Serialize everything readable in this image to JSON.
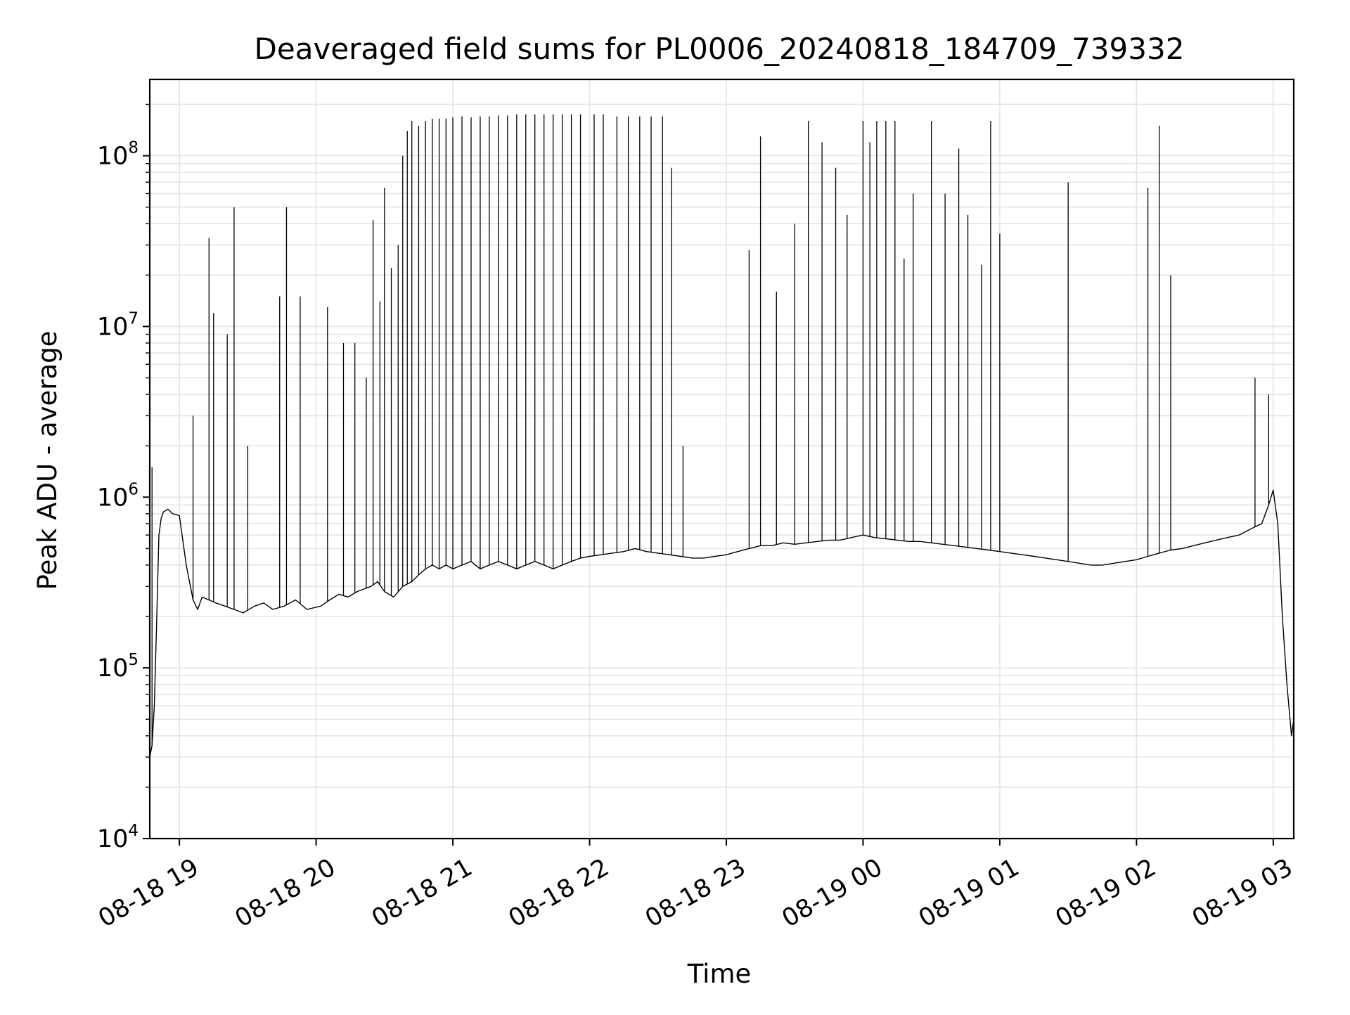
{
  "chart_data": {
    "type": "line",
    "title": "Deaveraged field sums for PL0006_20240818_184709_739332",
    "xlabel": "Time",
    "ylabel": "Peak ADU - average",
    "y_scale": "log",
    "ylim": [
      10000,
      280000000
    ],
    "xlim": [
      "2024-08-18 18:47",
      "2024-08-19 03:09"
    ],
    "grid": true,
    "line_color": "#000000",
    "grid_color": "#e5e5e5",
    "x_ticks": [
      {
        "value": "2024-08-18 19:00",
        "label": "08-18 19"
      },
      {
        "value": "2024-08-18 20:00",
        "label": "08-18 20"
      },
      {
        "value": "2024-08-18 21:00",
        "label": "08-18 21"
      },
      {
        "value": "2024-08-18 22:00",
        "label": "08-18 22"
      },
      {
        "value": "2024-08-18 23:00",
        "label": "08-18 23"
      },
      {
        "value": "2024-08-19 00:00",
        "label": "08-19 00"
      },
      {
        "value": "2024-08-19 01:00",
        "label": "08-19 01"
      },
      {
        "value": "2024-08-19 02:00",
        "label": "08-19 02"
      },
      {
        "value": "2024-08-19 03:00",
        "label": "08-19 03"
      }
    ],
    "y_ticks": [
      {
        "value": 10000,
        "base": "10",
        "exp": "4"
      },
      {
        "value": 100000,
        "base": "10",
        "exp": "5"
      },
      {
        "value": 1000000,
        "base": "10",
        "exp": "6"
      },
      {
        "value": 10000000,
        "base": "10",
        "exp": "7"
      },
      {
        "value": 100000000,
        "base": "10",
        "exp": "8"
      }
    ],
    "series": [
      {
        "x": [
          "2024-08-18 18:47",
          "2024-08-18 18:48",
          "2024-08-18 18:49",
          "2024-08-18 18:50",
          "2024-08-18 18:51",
          "2024-08-18 18:52",
          "2024-08-18 18:53",
          "2024-08-18 18:55",
          "2024-08-18 18:57",
          "2024-08-18 19:00",
          "2024-08-18 19:03",
          "2024-08-18 19:06",
          "2024-08-18 19:08",
          "2024-08-18 19:10",
          "2024-08-18 19:13",
          "2024-08-18 19:16",
          "2024-08-18 19:20",
          "2024-08-18 19:24",
          "2024-08-18 19:28",
          "2024-08-18 19:33",
          "2024-08-18 19:37",
          "2024-08-18 19:41",
          "2024-08-18 19:46",
          "2024-08-18 19:51",
          "2024-08-18 19:56",
          "2024-08-18 20:02",
          "2024-08-18 20:06",
          "2024-08-18 20:10",
          "2024-08-18 20:14",
          "2024-08-18 20:18",
          "2024-08-18 20:24",
          "2024-08-18 20:27",
          "2024-08-18 20:30",
          "2024-08-18 20:34",
          "2024-08-18 20:38",
          "2024-08-18 20:42",
          "2024-08-18 20:45",
          "2024-08-18 20:48",
          "2024-08-18 20:51",
          "2024-08-18 20:54",
          "2024-08-18 20:57",
          "2024-08-18 21:00",
          "2024-08-18 21:04",
          "2024-08-18 21:08",
          "2024-08-18 21:12",
          "2024-08-18 21:16",
          "2024-08-18 21:20",
          "2024-08-18 21:24",
          "2024-08-18 21:28",
          "2024-08-18 21:32",
          "2024-08-18 21:36",
          "2024-08-18 21:40",
          "2024-08-18 21:44",
          "2024-08-18 21:48",
          "2024-08-18 21:52",
          "2024-08-18 21:56",
          "2024-08-18 22:00",
          "2024-08-18 22:05",
          "2024-08-18 22:10",
          "2024-08-18 22:15",
          "2024-08-18 22:20",
          "2024-08-18 22:25",
          "2024-08-18 22:30",
          "2024-08-18 22:35",
          "2024-08-18 22:40",
          "2024-08-18 22:45",
          "2024-08-18 22:50",
          "2024-08-18 22:55",
          "2024-08-18 23:00",
          "2024-08-18 23:05",
          "2024-08-18 23:10",
          "2024-08-18 23:15",
          "2024-08-18 23:20",
          "2024-08-18 23:25",
          "2024-08-18 23:30",
          "2024-08-18 23:35",
          "2024-08-18 23:40",
          "2024-08-18 23:45",
          "2024-08-18 23:50",
          "2024-08-18 23:55",
          "2024-08-19 00:00",
          "2024-08-19 00:05",
          "2024-08-19 00:10",
          "2024-08-19 00:15",
          "2024-08-19 00:20",
          "2024-08-19 00:25",
          "2024-08-19 00:30",
          "2024-08-19 00:35",
          "2024-08-19 00:40",
          "2024-08-19 00:45",
          "2024-08-19 00:50",
          "2024-08-19 00:55",
          "2024-08-19 01:00",
          "2024-08-19 01:05",
          "2024-08-19 01:10",
          "2024-08-19 01:15",
          "2024-08-19 01:20",
          "2024-08-19 01:25",
          "2024-08-19 01:30",
          "2024-08-19 01:35",
          "2024-08-19 01:40",
          "2024-08-19 01:45",
          "2024-08-19 01:50",
          "2024-08-19 01:55",
          "2024-08-19 02:00",
          "2024-08-19 02:05",
          "2024-08-19 02:10",
          "2024-08-19 02:15",
          "2024-08-19 02:20",
          "2024-08-19 02:25",
          "2024-08-19 02:30",
          "2024-08-19 02:35",
          "2024-08-19 02:40",
          "2024-08-19 02:45",
          "2024-08-19 02:50",
          "2024-08-19 02:55",
          "2024-08-19 02:58",
          "2024-08-19 03:00",
          "2024-08-19 03:02",
          "2024-08-19 03:04",
          "2024-08-19 03:06",
          "2024-08-19 03:08",
          "2024-08-19 03:09"
        ],
        "y": [
          30000,
          35000,
          60000,
          180000,
          600000,
          750000,
          820000,
          850000,
          800000,
          780000,
          400000,
          250000,
          220000,
          260000,
          250000,
          240000,
          230000,
          220000,
          210000,
          230000,
          240000,
          220000,
          230000,
          250000,
          220000,
          230000,
          250000,
          270000,
          260000,
          280000,
          300000,
          320000,
          280000,
          260000,
          300000,
          320000,
          350000,
          380000,
          400000,
          380000,
          400000,
          380000,
          400000,
          420000,
          380000,
          400000,
          420000,
          400000,
          380000,
          400000,
          420000,
          400000,
          380000,
          400000,
          420000,
          440000,
          450000,
          460000,
          470000,
          480000,
          500000,
          480000,
          470000,
          460000,
          450000,
          440000,
          440000,
          450000,
          460000,
          480000,
          500000,
          520000,
          520000,
          540000,
          530000,
          540000,
          550000,
          560000,
          560000,
          580000,
          600000,
          580000,
          570000,
          560000,
          550000,
          550000,
          540000,
          530000,
          520000,
          510000,
          500000,
          490000,
          480000,
          470000,
          460000,
          450000,
          440000,
          430000,
          420000,
          410000,
          400000,
          400000,
          410000,
          420000,
          430000,
          450000,
          470000,
          490000,
          500000,
          520000,
          540000,
          560000,
          580000,
          600000,
          650000,
          700000,
          900000,
          1100000,
          700000,
          200000,
          80000,
          40000,
          50000
        ]
      }
    ],
    "spikes": [
      {
        "x": "2024-08-18 18:48",
        "peak": 1500000
      },
      {
        "x": "2024-08-18 19:06",
        "peak": 3000000
      },
      {
        "x": "2024-08-18 19:13",
        "peak": 33000000
      },
      {
        "x": "2024-08-18 19:15",
        "peak": 12000000
      },
      {
        "x": "2024-08-18 19:21",
        "peak": 9000000
      },
      {
        "x": "2024-08-18 19:24",
        "peak": 50000000
      },
      {
        "x": "2024-08-18 19:30",
        "peak": 2000000
      },
      {
        "x": "2024-08-18 19:44",
        "peak": 15000000
      },
      {
        "x": "2024-08-18 19:47",
        "peak": 50000000
      },
      {
        "x": "2024-08-18 19:53",
        "peak": 15000000
      },
      {
        "x": "2024-08-18 20:05",
        "peak": 13000000
      },
      {
        "x": "2024-08-18 20:12",
        "peak": 8000000
      },
      {
        "x": "2024-08-18 20:17",
        "peak": 8000000
      },
      {
        "x": "2024-08-18 20:22",
        "peak": 5000000
      },
      {
        "x": "2024-08-18 20:25",
        "peak": 42000000
      },
      {
        "x": "2024-08-18 20:28",
        "peak": 14000000
      },
      {
        "x": "2024-08-18 20:30",
        "peak": 65000000
      },
      {
        "x": "2024-08-18 20:33",
        "peak": 22000000
      },
      {
        "x": "2024-08-18 20:36",
        "peak": 30000000
      },
      {
        "x": "2024-08-18 20:38",
        "peak": 100000000
      },
      {
        "x": "2024-08-18 20:40",
        "peak": 140000000
      },
      {
        "x": "2024-08-18 20:42",
        "peak": 160000000
      },
      {
        "x": "2024-08-18 20:45",
        "peak": 150000000
      },
      {
        "x": "2024-08-18 20:48",
        "peak": 160000000
      },
      {
        "x": "2024-08-18 20:51",
        "peak": 165000000
      },
      {
        "x": "2024-08-18 20:54",
        "peak": 165000000
      },
      {
        "x": "2024-08-18 20:57",
        "peak": 165000000
      },
      {
        "x": "2024-08-18 21:00",
        "peak": 168000000
      },
      {
        "x": "2024-08-18 21:04",
        "peak": 170000000
      },
      {
        "x": "2024-08-18 21:08",
        "peak": 168000000
      },
      {
        "x": "2024-08-18 21:12",
        "peak": 170000000
      },
      {
        "x": "2024-08-18 21:16",
        "peak": 170000000
      },
      {
        "x": "2024-08-18 21:20",
        "peak": 172000000
      },
      {
        "x": "2024-08-18 21:24",
        "peak": 172000000
      },
      {
        "x": "2024-08-18 21:28",
        "peak": 175000000
      },
      {
        "x": "2024-08-18 21:32",
        "peak": 175000000
      },
      {
        "x": "2024-08-18 21:36",
        "peak": 175000000
      },
      {
        "x": "2024-08-18 21:40",
        "peak": 175000000
      },
      {
        "x": "2024-08-18 21:44",
        "peak": 175000000
      },
      {
        "x": "2024-08-18 21:48",
        "peak": 175000000
      },
      {
        "x": "2024-08-18 21:52",
        "peak": 175000000
      },
      {
        "x": "2024-08-18 21:56",
        "peak": 175000000
      },
      {
        "x": "2024-08-18 22:02",
        "peak": 175000000
      },
      {
        "x": "2024-08-18 22:06",
        "peak": 175000000
      },
      {
        "x": "2024-08-18 22:12",
        "peak": 170000000
      },
      {
        "x": "2024-08-18 22:17",
        "peak": 170000000
      },
      {
        "x": "2024-08-18 22:22",
        "peak": 170000000
      },
      {
        "x": "2024-08-18 22:27",
        "peak": 170000000
      },
      {
        "x": "2024-08-18 22:32",
        "peak": 170000000
      },
      {
        "x": "2024-08-18 22:36",
        "peak": 85000000
      },
      {
        "x": "2024-08-18 22:41",
        "peak": 2000000
      },
      {
        "x": "2024-08-18 23:10",
        "peak": 28000000
      },
      {
        "x": "2024-08-18 23:15",
        "peak": 130000000
      },
      {
        "x": "2024-08-18 23:22",
        "peak": 16000000
      },
      {
        "x": "2024-08-18 23:30",
        "peak": 40000000
      },
      {
        "x": "2024-08-18 23:36",
        "peak": 160000000
      },
      {
        "x": "2024-08-18 23:42",
        "peak": 120000000
      },
      {
        "x": "2024-08-18 23:48",
        "peak": 85000000
      },
      {
        "x": "2024-08-18 23:53",
        "peak": 45000000
      },
      {
        "x": "2024-08-19 00:00",
        "peak": 160000000
      },
      {
        "x": "2024-08-19 00:03",
        "peak": 120000000
      },
      {
        "x": "2024-08-19 00:06",
        "peak": 160000000
      },
      {
        "x": "2024-08-19 00:10",
        "peak": 160000000
      },
      {
        "x": "2024-08-19 00:14",
        "peak": 160000000
      },
      {
        "x": "2024-08-19 00:18",
        "peak": 25000000
      },
      {
        "x": "2024-08-19 00:22",
        "peak": 60000000
      },
      {
        "x": "2024-08-19 00:30",
        "peak": 160000000
      },
      {
        "x": "2024-08-19 00:36",
        "peak": 60000000
      },
      {
        "x": "2024-08-19 00:42",
        "peak": 110000000
      },
      {
        "x": "2024-08-19 00:46",
        "peak": 45000000
      },
      {
        "x": "2024-08-19 00:52",
        "peak": 23000000
      },
      {
        "x": "2024-08-19 00:56",
        "peak": 160000000
      },
      {
        "x": "2024-08-19 01:00",
        "peak": 35000000
      },
      {
        "x": "2024-08-19 01:30",
        "peak": 70000000
      },
      {
        "x": "2024-08-19 02:05",
        "peak": 65000000
      },
      {
        "x": "2024-08-19 02:10",
        "peak": 150000000
      },
      {
        "x": "2024-08-19 02:15",
        "peak": 20000000
      },
      {
        "x": "2024-08-19 02:52",
        "peak": 5000000
      },
      {
        "x": "2024-08-19 02:58",
        "peak": 4000000
      }
    ]
  }
}
